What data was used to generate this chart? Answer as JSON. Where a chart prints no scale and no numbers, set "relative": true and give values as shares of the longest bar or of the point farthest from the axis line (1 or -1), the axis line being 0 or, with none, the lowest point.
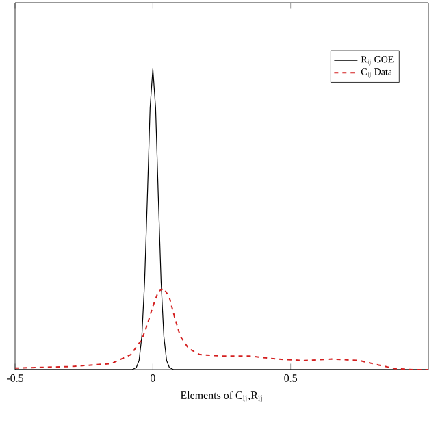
{
  "chart_data": {
    "type": "line",
    "xlabel": "Elements of C$_{ij}$,R$_{ij}$",
    "relative": true,
    "xlim": [
      -0.5,
      1.0
    ],
    "xticks": [
      -0.5,
      0,
      0.5
    ],
    "legend": "top right",
    "grid": false,
    "series": [
      {
        "name": "R$_{ij}$ GOE",
        "color": "#000000",
        "line_style": "solid",
        "x": [
          -0.5,
          -0.1,
          -0.075,
          -0.06,
          -0.05,
          -0.04,
          -0.03,
          -0.02,
          -0.01,
          0,
          0.01,
          0.02,
          0.03,
          0.04,
          0.05,
          0.06,
          0.075,
          0.1,
          1.0
        ],
        "values": [
          0,
          0,
          0,
          0.007,
          0.03,
          0.11,
          0.29,
          0.57,
          0.87,
          1.0,
          0.87,
          0.57,
          0.29,
          0.11,
          0.03,
          0.007,
          0,
          0,
          0
        ]
      },
      {
        "name": "C$_{ij}$ Data",
        "color": "#d42020",
        "line_style": "dashed",
        "x": [
          -0.5,
          -0.3,
          -0.15,
          -0.08,
          -0.04,
          -0.02,
          0,
          0.02,
          0.04,
          0.06,
          0.08,
          0.1,
          0.13,
          0.17,
          0.25,
          0.35,
          0.45,
          0.55,
          0.65,
          0.75,
          0.82,
          0.88,
          0.95,
          1.0
        ],
        "values": [
          0.005,
          0.01,
          0.02,
          0.05,
          0.1,
          0.15,
          0.21,
          0.26,
          0.27,
          0.24,
          0.17,
          0.11,
          0.07,
          0.05,
          0.045,
          0.045,
          0.035,
          0.03,
          0.035,
          0.03,
          0.015,
          0.003,
          0,
          0
        ]
      }
    ]
  }
}
